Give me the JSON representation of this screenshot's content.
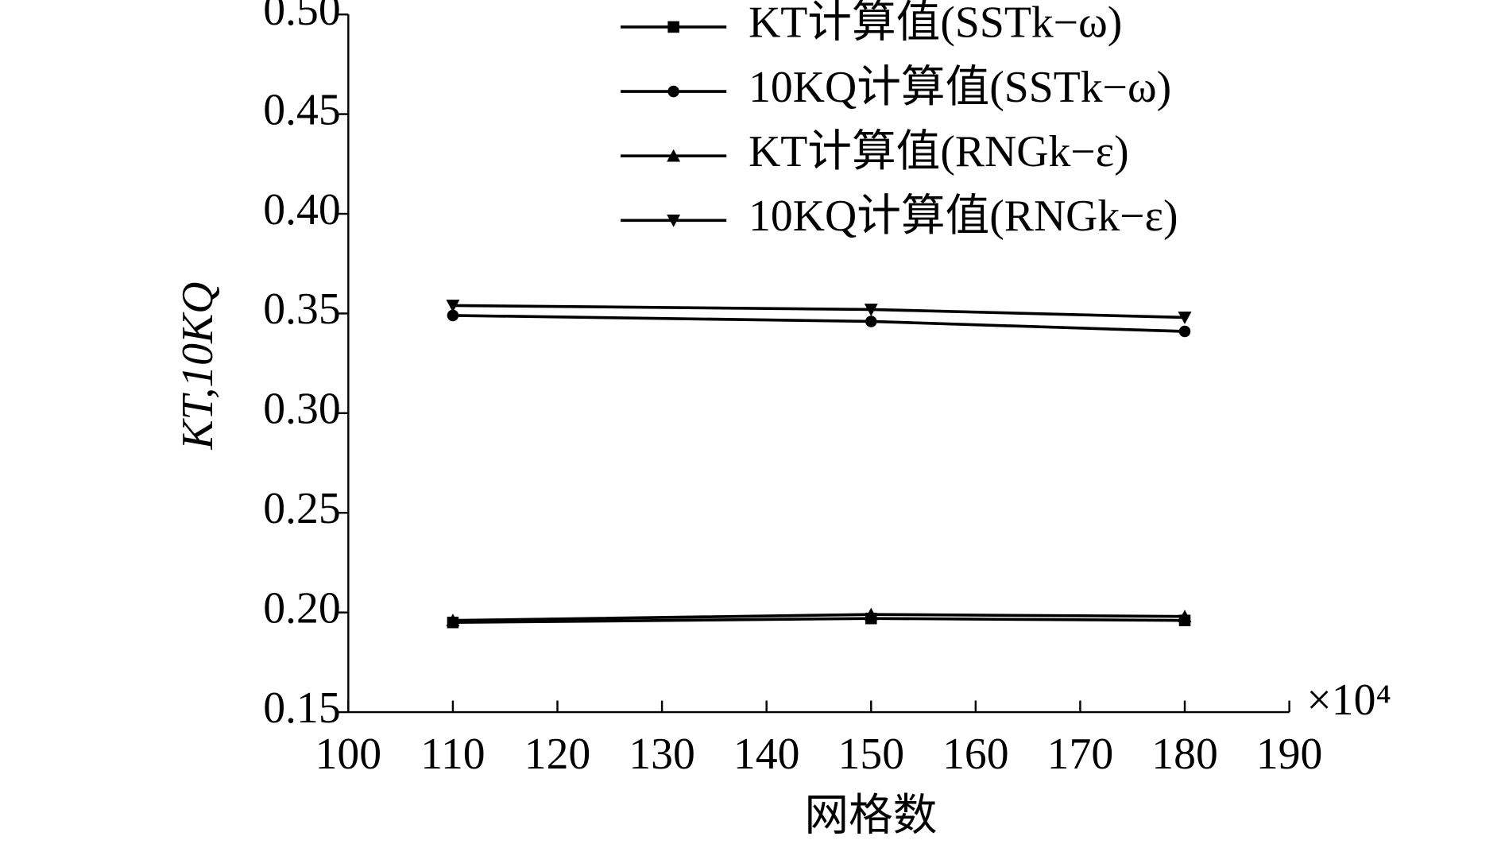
{
  "chart_data": {
    "type": "line",
    "x_label": "网格数",
    "y_label": "KT,10KQ",
    "x_annotation": "×10⁴",
    "xlim": [
      100,
      190
    ],
    "xticks": [
      100,
      110,
      120,
      130,
      140,
      150,
      160,
      170,
      180,
      190
    ],
    "ylim": [
      0.15,
      0.5
    ],
    "yticks": [
      0.15,
      {
        "value": 0.2,
        "label": "0.20"
      },
      0.25,
      {
        "value": 0.3,
        "label": "0.30"
      },
      0.35,
      {
        "value": 0.4,
        "label": "0.40"
      },
      0.45,
      {
        "value": 0.5,
        "label": "0.50"
      }
    ],
    "x": [
      110,
      150,
      180
    ],
    "series": [
      {
        "name": "KT计算值(SSTk−ω)",
        "color": "#000000",
        "marker": "square",
        "values": [
          0.195,
          0.197,
          0.196
        ]
      },
      {
        "name": "10KQ计算值(SSTk−ω)",
        "color": "#000000",
        "marker": "circle",
        "values": [
          0.349,
          0.346,
          0.341
        ]
      },
      {
        "name": "KT计算值(RNGk−ε)",
        "color": "#000000",
        "marker": "triangle-up",
        "values": [
          0.196,
          0.199,
          0.198
        ]
      },
      {
        "name": "10KQ计算值(RNGk−ε)",
        "color": "#000000",
        "marker": "triangle-down",
        "values": [
          0.354,
          0.352,
          0.348
        ]
      }
    ]
  }
}
